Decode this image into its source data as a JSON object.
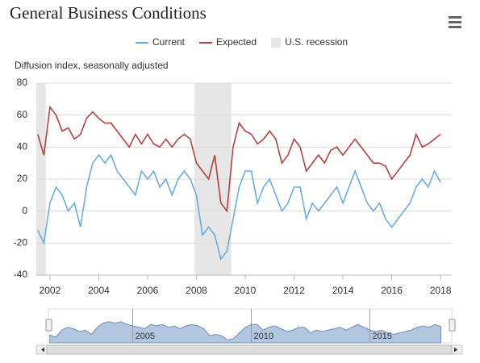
{
  "chart_data": {
    "type": "line",
    "title": "General Business Conditions",
    "subtitle": "Diffusion index, seasonally adjusted",
    "x": [
      2001.5,
      2001.75,
      2002,
      2002.25,
      2002.5,
      2002.75,
      2003,
      2003.25,
      2003.5,
      2003.75,
      2004,
      2004.25,
      2004.5,
      2004.75,
      2005,
      2005.25,
      2005.5,
      2005.75,
      2006,
      2006.25,
      2006.5,
      2006.75,
      2007,
      2007.25,
      2007.5,
      2007.75,
      2008,
      2008.25,
      2008.5,
      2008.75,
      2009,
      2009.25,
      2009.5,
      2009.75,
      2010,
      2010.25,
      2010.5,
      2010.75,
      2011,
      2011.25,
      2011.5,
      2011.75,
      2012,
      2012.25,
      2012.5,
      2012.75,
      2013,
      2013.25,
      2013.5,
      2013.75,
      2014,
      2014.25,
      2014.5,
      2014.75,
      2015,
      2015.25,
      2015.5,
      2015.75,
      2016,
      2016.25,
      2016.5,
      2016.75,
      2017,
      2017.25,
      2017.5,
      2017.75,
      2018
    ],
    "series": [
      {
        "name": "Current",
        "color": "#6aaee0",
        "values": [
          -12,
          -20,
          5,
          15,
          10,
          0,
          5,
          -10,
          15,
          30,
          35,
          30,
          35,
          25,
          20,
          15,
          10,
          25,
          20,
          25,
          15,
          20,
          10,
          20,
          25,
          20,
          10,
          -15,
          -10,
          -15,
          -30,
          -25,
          -5,
          15,
          25,
          25,
          5,
          15,
          20,
          10,
          0,
          5,
          15,
          15,
          -5,
          5,
          0,
          5,
          10,
          15,
          5,
          15,
          25,
          15,
          5,
          0,
          5,
          -5,
          -10,
          -5,
          0,
          5,
          15,
          20,
          15,
          25,
          18
        ]
      },
      {
        "name": "Expected",
        "color": "#b5413f",
        "values": [
          48,
          35,
          65,
          60,
          50,
          52,
          45,
          48,
          58,
          62,
          58,
          55,
          55,
          50,
          45,
          40,
          48,
          42,
          48,
          42,
          40,
          45,
          40,
          45,
          48,
          45,
          30,
          25,
          20,
          35,
          5,
          0,
          40,
          55,
          50,
          48,
          42,
          45,
          50,
          45,
          30,
          35,
          45,
          40,
          25,
          30,
          35,
          30,
          38,
          40,
          35,
          40,
          45,
          40,
          35,
          30,
          30,
          28,
          20,
          25,
          30,
          35,
          48,
          40,
          42,
          45,
          48
        ]
      }
    ],
    "recessions": {
      "name": "U.S. recession",
      "color": "#e6e6e6",
      "ranges": [
        [
          2001.25,
          2001.83
        ],
        [
          2007.92,
          2009.42
        ]
      ]
    },
    "xlim": [
      2001.44,
      2018.46
    ],
    "ylim": [
      -40,
      80
    ],
    "xticks": [
      2002,
      2004,
      2006,
      2008,
      2010,
      2012,
      2014,
      2016,
      2018
    ],
    "yticks": [
      -40,
      -20,
      0,
      20,
      40,
      60,
      80
    ],
    "grid": true,
    "navigator": {
      "labels": [
        "2005",
        "2010",
        "2015"
      ],
      "ticks": [
        2005,
        2010,
        2015
      ]
    }
  }
}
